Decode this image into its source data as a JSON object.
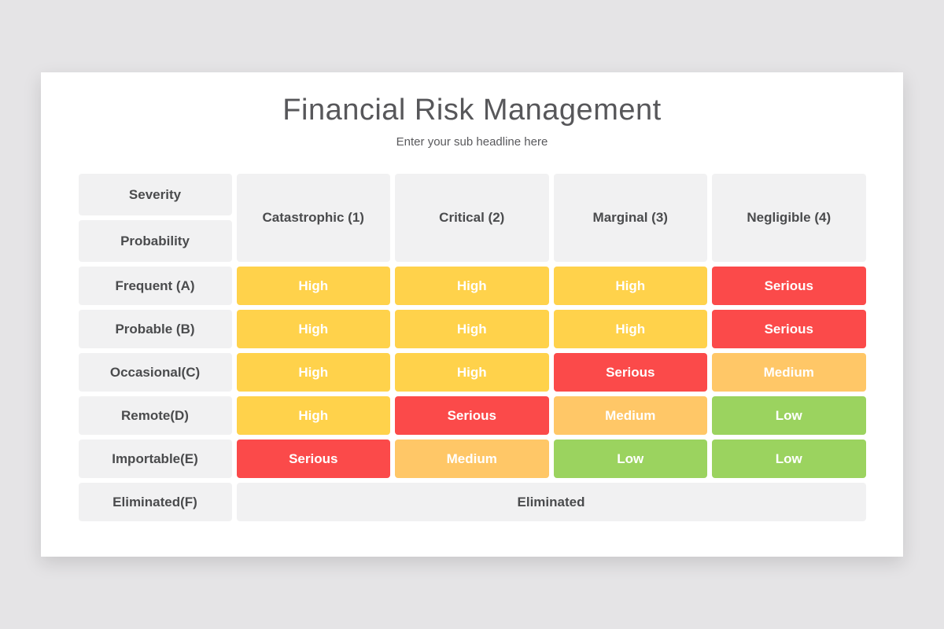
{
  "header": {
    "title": "Financial Risk Management",
    "subtitle": "Enter your sub headline here"
  },
  "matrix": {
    "corner": {
      "top": "Severity",
      "bottom": "Probability"
    },
    "columns": [
      "Catastrophic (1)",
      "Critical (2)",
      "Marginal (3)",
      "Negligible (4)"
    ],
    "rows": [
      {
        "label": "Frequent (A)",
        "cells": [
          {
            "label": "High",
            "level": "high"
          },
          {
            "label": "High",
            "level": "high"
          },
          {
            "label": "High",
            "level": "high"
          },
          {
            "label": "Serious",
            "level": "serious"
          }
        ]
      },
      {
        "label": "Probable (B)",
        "cells": [
          {
            "label": "High",
            "level": "high"
          },
          {
            "label": "High",
            "level": "high"
          },
          {
            "label": "High",
            "level": "high"
          },
          {
            "label": "Serious",
            "level": "serious"
          }
        ]
      },
      {
        "label": "Occasional(C)",
        "cells": [
          {
            "label": "High",
            "level": "high"
          },
          {
            "label": "High",
            "level": "high"
          },
          {
            "label": "Serious",
            "level": "serious"
          },
          {
            "label": "Medium",
            "level": "medium"
          }
        ]
      },
      {
        "label": "Remote(D)",
        "cells": [
          {
            "label": "High",
            "level": "high"
          },
          {
            "label": "Serious",
            "level": "serious"
          },
          {
            "label": "Medium",
            "level": "medium"
          },
          {
            "label": "Low",
            "level": "low"
          }
        ]
      },
      {
        "label": "Importable(E)",
        "cells": [
          {
            "label": "Serious",
            "level": "serious"
          },
          {
            "label": "Medium",
            "level": "medium"
          },
          {
            "label": "Low",
            "level": "low"
          },
          {
            "label": "Low",
            "level": "low"
          }
        ]
      },
      {
        "label": "Eliminated(F)",
        "span": {
          "label": "Eliminated"
        }
      }
    ]
  },
  "colors": {
    "high": "#ffd24b",
    "serious": "#fb4a4a",
    "medium": "#ffc767",
    "low": "#9bd35f",
    "label_bg": "#f1f1f2"
  }
}
